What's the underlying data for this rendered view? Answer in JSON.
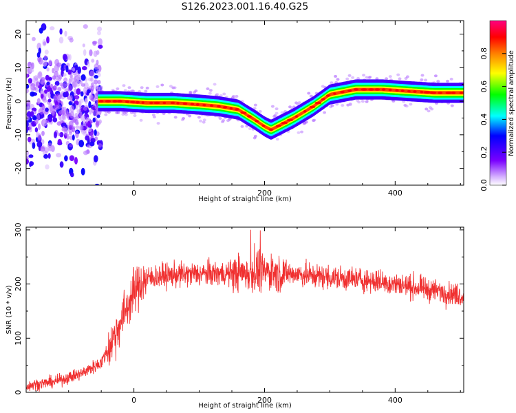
{
  "title": "S126.2023.001.16.40.G25",
  "chart_data": [
    {
      "type": "heatmap",
      "xlabel": "Height of straight line (km)",
      "ylabel": "Frequency (Hz)",
      "xlim": [
        -165,
        505
      ],
      "ylim": [
        -25,
        24
      ],
      "xticks": [
        0,
        200,
        400
      ],
      "yticks": [
        -20,
        -10,
        0,
        10,
        20
      ],
      "colorbar": {
        "label": "Normalized spectral amplitude",
        "ticks": [
          0.0,
          0.2,
          0.4,
          0.6,
          0.8
        ],
        "range": [
          0,
          1
        ],
        "colormap": "rainbow"
      },
      "ridge": {
        "x": [
          -55,
          -20,
          20,
          60,
          100,
          130,
          160,
          185,
          200,
          210,
          220,
          245,
          275,
          300,
          340,
          380,
          420,
          460,
          505
        ],
        "frequency": [
          0,
          0,
          -0.5,
          -0.5,
          -1,
          -1.5,
          -2.5,
          -5.5,
          -7.5,
          -8.5,
          -7.5,
          -5,
          -1.5,
          2,
          3.5,
          3.5,
          3,
          2.5,
          2.5
        ]
      }
    },
    {
      "type": "line",
      "xlabel": "Height of straight line (km)",
      "ylabel": "SNR (10 * v/v)",
      "xlim": [
        -165,
        505
      ],
      "ylim": [
        0,
        305
      ],
      "xticks": [
        0,
        200,
        400
      ],
      "yticks": [
        0,
        100,
        200,
        300
      ],
      "series": [
        {
          "color": "#f03030",
          "envelope_x": [
            -165,
            -120,
            -80,
            -50,
            -35,
            -20,
            -10,
            0,
            10,
            20,
            40,
            80,
            150,
            200,
            250,
            300,
            350,
            400,
            450,
            505
          ],
          "envelope_y": [
            12,
            20,
            35,
            55,
            90,
            130,
            160,
            185,
            200,
            210,
            215,
            218,
            220,
            222,
            218,
            212,
            208,
            200,
            190,
            178
          ]
        }
      ]
    }
  ]
}
